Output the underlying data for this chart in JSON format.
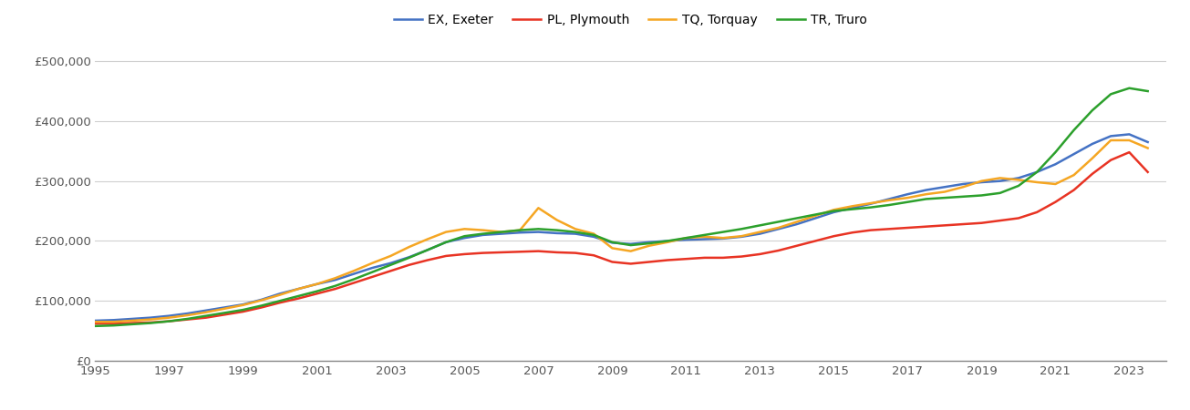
{
  "years": [
    1995.0,
    1995.5,
    1996.0,
    1996.5,
    1997.0,
    1997.5,
    1998.0,
    1998.5,
    1999.0,
    1999.5,
    2000.0,
    2000.5,
    2001.0,
    2001.5,
    2002.0,
    2002.5,
    2003.0,
    2003.5,
    2004.0,
    2004.5,
    2005.0,
    2005.5,
    2006.0,
    2006.5,
    2007.0,
    2007.5,
    2008.0,
    2008.5,
    2009.0,
    2009.5,
    2010.0,
    2010.5,
    2011.0,
    2011.5,
    2012.0,
    2012.5,
    2013.0,
    2013.5,
    2014.0,
    2014.5,
    2015.0,
    2015.5,
    2016.0,
    2016.5,
    2017.0,
    2017.5,
    2018.0,
    2018.5,
    2019.0,
    2019.5,
    2020.0,
    2020.5,
    2021.0,
    2021.5,
    2022.0,
    2022.5,
    2023.0,
    2023.5
  ],
  "EX_Exeter": [
    67000,
    68000,
    70000,
    72000,
    75000,
    79000,
    84000,
    89000,
    94000,
    102000,
    112000,
    120000,
    128000,
    135000,
    145000,
    155000,
    163000,
    173000,
    185000,
    198000,
    205000,
    210000,
    212000,
    214000,
    215000,
    213000,
    212000,
    207000,
    197000,
    195000,
    198000,
    200000,
    202000,
    203000,
    204000,
    207000,
    212000,
    220000,
    228000,
    238000,
    248000,
    255000,
    262000,
    270000,
    278000,
    285000,
    290000,
    295000,
    298000,
    300000,
    305000,
    315000,
    328000,
    345000,
    362000,
    375000,
    378000,
    365000
  ],
  "PL_Plymouth": [
    62000,
    62000,
    63000,
    64000,
    66000,
    69000,
    72000,
    77000,
    82000,
    89000,
    97000,
    104000,
    112000,
    120000,
    130000,
    140000,
    150000,
    160000,
    168000,
    175000,
    178000,
    180000,
    181000,
    182000,
    183000,
    181000,
    180000,
    176000,
    165000,
    162000,
    165000,
    168000,
    170000,
    172000,
    172000,
    174000,
    178000,
    184000,
    192000,
    200000,
    208000,
    214000,
    218000,
    220000,
    222000,
    224000,
    226000,
    228000,
    230000,
    234000,
    238000,
    248000,
    265000,
    285000,
    312000,
    335000,
    348000,
    315000
  ],
  "TQ_Torquay": [
    65000,
    65000,
    67000,
    69000,
    72000,
    76000,
    81000,
    87000,
    93000,
    101000,
    110000,
    120000,
    128000,
    138000,
    150000,
    163000,
    175000,
    190000,
    203000,
    215000,
    220000,
    218000,
    215000,
    218000,
    255000,
    235000,
    220000,
    212000,
    188000,
    183000,
    192000,
    198000,
    205000,
    207000,
    205000,
    208000,
    215000,
    222000,
    232000,
    242000,
    252000,
    258000,
    263000,
    268000,
    272000,
    278000,
    282000,
    290000,
    300000,
    305000,
    302000,
    298000,
    295000,
    310000,
    338000,
    368000,
    368000,
    355000
  ],
  "TR_Truro": [
    58000,
    59000,
    61000,
    63000,
    66000,
    70000,
    75000,
    80000,
    85000,
    92000,
    100000,
    108000,
    116000,
    125000,
    136000,
    148000,
    160000,
    172000,
    185000,
    198000,
    208000,
    212000,
    215000,
    218000,
    220000,
    218000,
    215000,
    210000,
    198000,
    193000,
    196000,
    200000,
    205000,
    210000,
    215000,
    220000,
    226000,
    232000,
    238000,
    244000,
    250000,
    253000,
    256000,
    260000,
    265000,
    270000,
    272000,
    274000,
    276000,
    280000,
    292000,
    315000,
    348000,
    385000,
    418000,
    445000,
    455000,
    450000
  ],
  "colors": {
    "EX_Exeter": "#4472c4",
    "PL_Plymouth": "#e83323",
    "TQ_Torquay": "#f5a623",
    "TR_Truro": "#2ca02c"
  },
  "legend_labels": {
    "EX_Exeter": "EX, Exeter",
    "PL_Plymouth": "PL, Plymouth",
    "TQ_Torquay": "TQ, Torquay",
    "TR_Truro": "TR, Truro"
  },
  "xlim": [
    1995,
    2024.0
  ],
  "ylim": [
    0,
    520000
  ],
  "yticks": [
    0,
    100000,
    200000,
    300000,
    400000,
    500000
  ],
  "xticks": [
    1995,
    1997,
    1999,
    2001,
    2003,
    2005,
    2007,
    2009,
    2011,
    2013,
    2015,
    2017,
    2019,
    2021,
    2023
  ],
  "background_color": "#ffffff",
  "grid_color": "#d0d0d0",
  "line_width": 1.8
}
